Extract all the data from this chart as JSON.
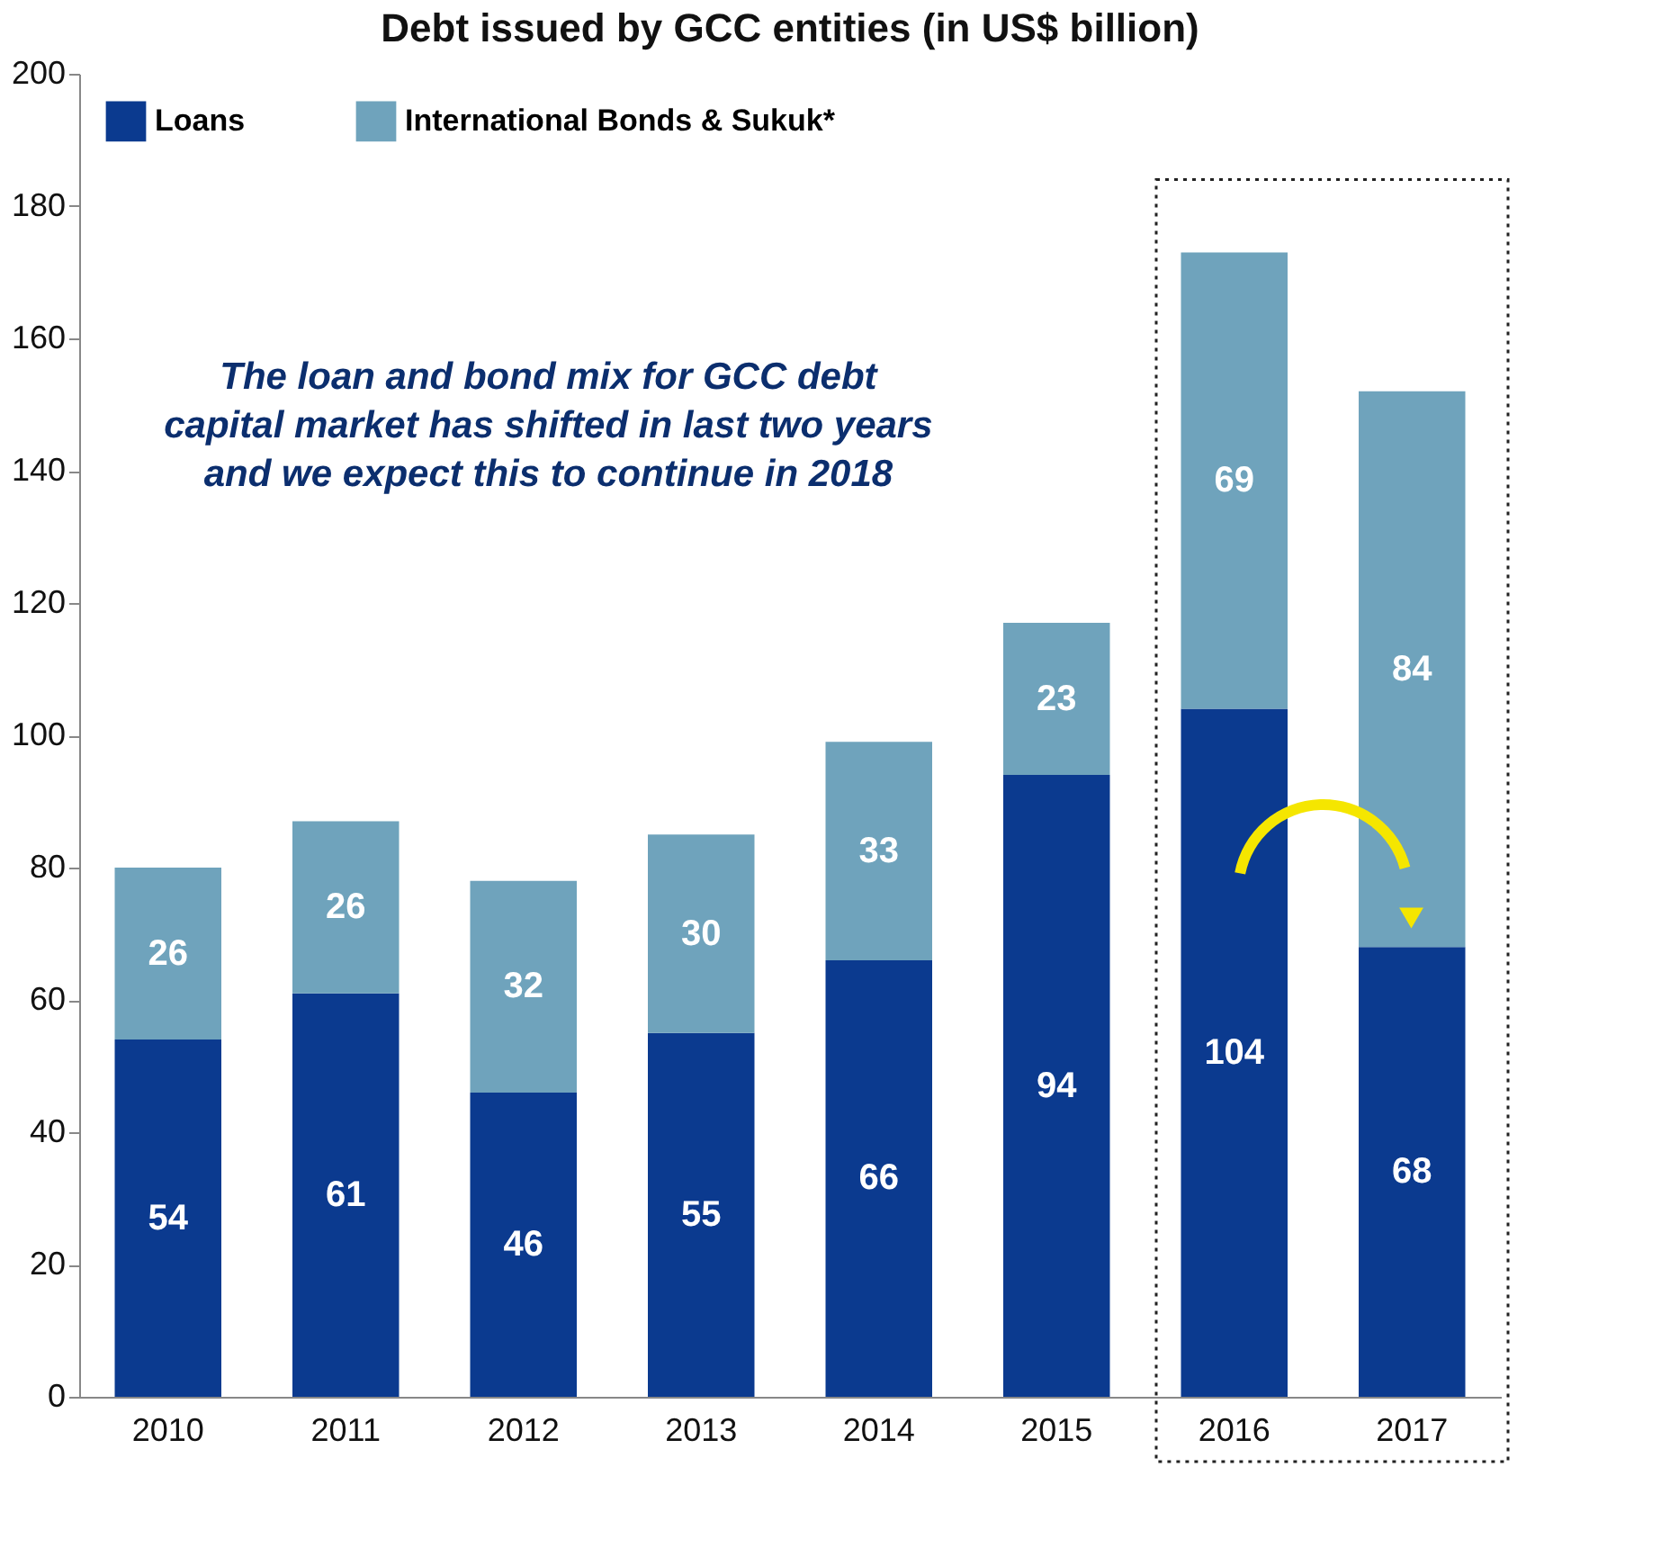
{
  "chart_data": {
    "type": "bar",
    "title": "Debt issued by GCC entities (in US$ billion)",
    "categories": [
      "2010",
      "2011",
      "2012",
      "2013",
      "2014",
      "2015",
      "2016",
      "2017"
    ],
    "stacked": true,
    "series": [
      {
        "name": "Loans",
        "color": "#0b3a8f",
        "values": [
          54,
          61,
          46,
          55,
          66,
          94,
          104,
          68
        ]
      },
      {
        "name": "International Bonds & Sukuk*",
        "color": "#6fa3bc",
        "values": [
          26,
          26,
          32,
          30,
          33,
          23,
          69,
          84
        ]
      }
    ],
    "ylim": [
      0,
      200
    ],
    "yticks": [
      0,
      20,
      40,
      60,
      80,
      100,
      120,
      140,
      160,
      180,
      200
    ],
    "grid": false,
    "legend": "top left",
    "data_labels": true,
    "annotations": [
      "The loan and bond mix for GCC debt\ncapital market has shifted in last two years\nand we expect this to continue in 2018"
    ]
  }
}
